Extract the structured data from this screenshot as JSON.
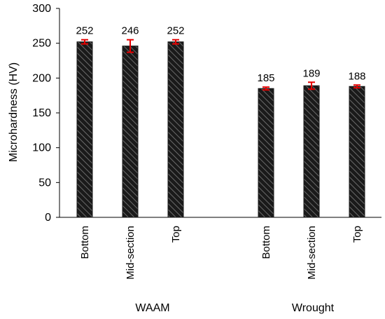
{
  "chart_data": {
    "type": "bar",
    "ylabel": "Microhardness (HV)",
    "xlabel": "",
    "ylim": [
      0,
      300
    ],
    "yticks": [
      0,
      50,
      100,
      150,
      200,
      250,
      300
    ],
    "groups": [
      {
        "name": "WAAM",
        "categories": [
          "Bottom",
          "Mid-section",
          "Top"
        ],
        "values": [
          252,
          246,
          252
        ],
        "labels": [
          "252",
          "246",
          "252"
        ],
        "errors": [
          3,
          9,
          3
        ]
      },
      {
        "name": "Wrought",
        "categories": [
          "Bottom",
          "Mid-section",
          "Top"
        ],
        "values": [
          185,
          189,
          188
        ],
        "labels": [
          "185",
          "189",
          "188"
        ],
        "errors": [
          2,
          5,
          2
        ]
      }
    ],
    "colors": {
      "bar_fill": "#1a1a1a",
      "bar_hatch": "#6b6b6b",
      "error_bar": "#e60000"
    },
    "bar_pattern": "diagonal-hatch",
    "grid": false,
    "legend": "none"
  }
}
